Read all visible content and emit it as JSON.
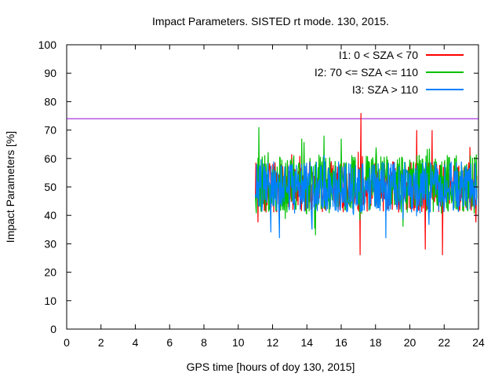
{
  "chart_data": {
    "type": "line",
    "title": "Impact Parameters. SISTED rt mode. 130, 2015.",
    "xlabel": "GPS time [hours of doy 130, 2015]",
    "ylabel": "Impact Parameters [%]",
    "xlim": [
      0,
      24
    ],
    "ylim": [
      0,
      100
    ],
    "xticks": [
      "0",
      "2",
      "4",
      "6",
      "8",
      "10",
      "12",
      "14",
      "16",
      "18",
      "20",
      "22",
      "24"
    ],
    "yticks": [
      "0",
      "10",
      "20",
      "30",
      "40",
      "50",
      "60",
      "70",
      "80",
      "90",
      "100"
    ],
    "threshold": {
      "y": 74,
      "color": "#9400d3"
    },
    "legend_position": "top-right",
    "series": [
      {
        "name": "I1: 0 < SZA < 70",
        "color": "#ff0000",
        "x_range": [
          11.0,
          23.9
        ],
        "mean": 50,
        "typical_min": 42,
        "typical_max": 60,
        "extremes": [
          [
            17.15,
            76
          ],
          [
            17.1,
            26
          ],
          [
            21.9,
            26
          ],
          [
            20.9,
            28
          ],
          [
            20.4,
            70
          ],
          [
            21.3,
            70
          ],
          [
            23.5,
            64
          ]
        ]
      },
      {
        "name": "I2: 70 <= SZA <= 110",
        "color": "#00c000",
        "x_range": [
          11.0,
          23.9
        ],
        "mean": 51,
        "typical_min": 41,
        "typical_max": 62,
        "extremes": [
          [
            11.2,
            71
          ],
          [
            15.0,
            68
          ],
          [
            16.0,
            67
          ],
          [
            13.7,
            67
          ],
          [
            14.5,
            33
          ]
        ]
      },
      {
        "name": "I3: SZA > 110",
        "color": "#0080ff",
        "x_range": [
          11.0,
          23.9
        ],
        "mean": 50,
        "typical_min": 42,
        "typical_max": 60,
        "extremes": [
          [
            11.9,
            34
          ],
          [
            12.4,
            32
          ],
          [
            14.3,
            35
          ],
          [
            18.6,
            32
          ]
        ]
      }
    ]
  }
}
